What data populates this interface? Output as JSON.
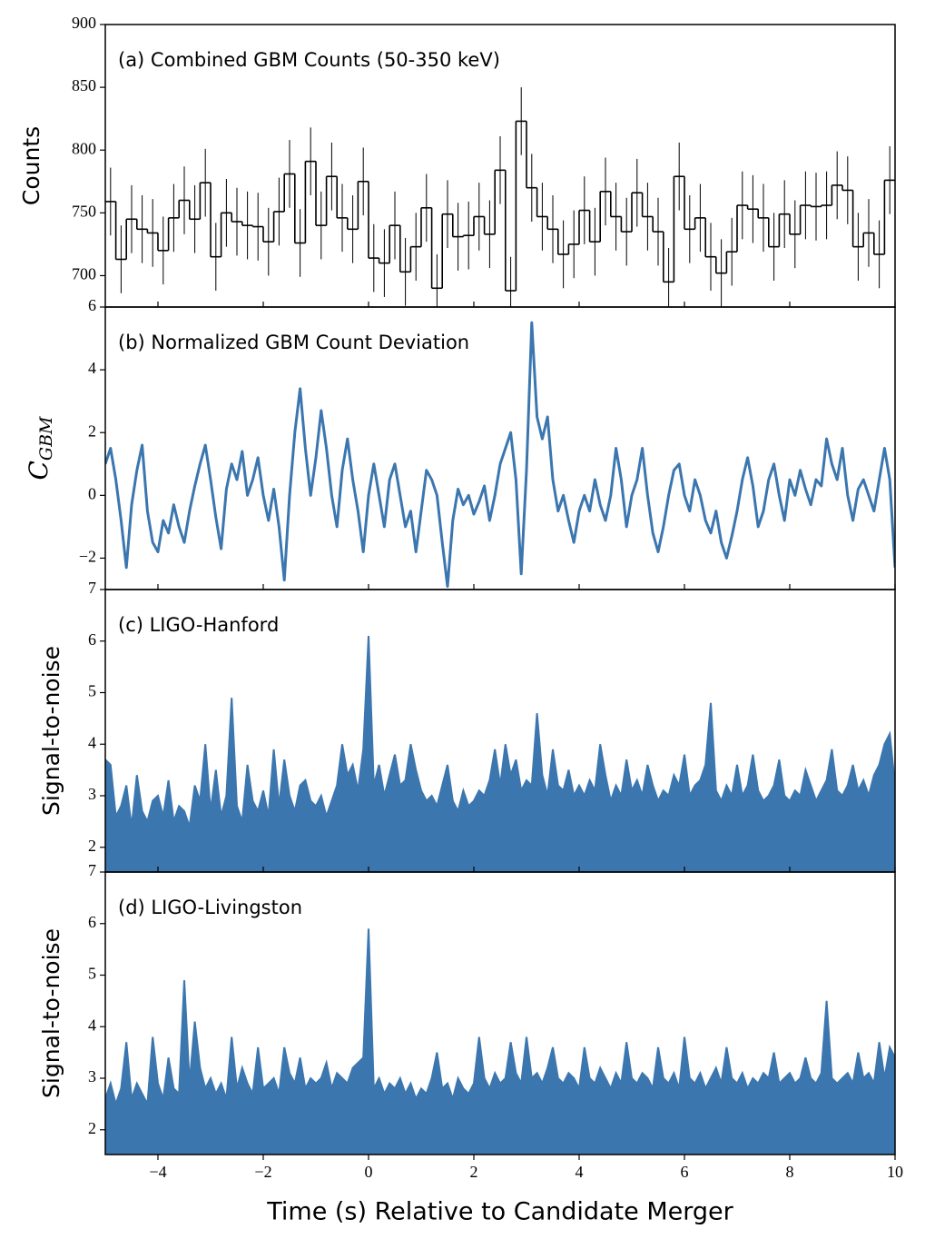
{
  "chart_data": [
    {
      "type": "histogram",
      "annotation": "(a) Combined GBM Counts (50-350 keV)",
      "ylabel": "Counts",
      "color": "#000000",
      "bins": [
        -5,
        -4.8,
        -4.6,
        -4.4,
        -4.2,
        -4,
        -3.8,
        -3.6,
        -3.4,
        -3.2,
        -3,
        -2.8,
        -2.6,
        -2.4,
        -2.2,
        -2,
        -1.8,
        -1.6,
        -1.4,
        -1.2,
        -1,
        -0.8,
        -0.6,
        -0.4,
        -0.2,
        0,
        0.2,
        0.4,
        0.6,
        0.8,
        1,
        1.2,
        1.4,
        1.6,
        1.8,
        2,
        2.2,
        2.4,
        2.6,
        2.8,
        3,
        3.2,
        3.4,
        3.6,
        3.8,
        4,
        4.2,
        4.4,
        4.6,
        4.8,
        5,
        5.2,
        5.4,
        5.6,
        5.8,
        6,
        6.2,
        6.4,
        6.6,
        6.8,
        7,
        7.2,
        7.4,
        7.6,
        7.8,
        8,
        8.2,
        8.4,
        8.6,
        8.8,
        9,
        9.2,
        9.4,
        9.6,
        9.8,
        10
      ],
      "values": [
        759,
        713,
        745,
        737,
        734,
        720,
        746,
        760,
        745,
        774,
        715,
        750,
        743,
        740,
        739,
        727,
        751,
        781,
        726,
        791,
        740,
        779,
        746,
        737,
        775,
        714,
        710,
        740,
        703,
        723,
        754,
        690,
        749,
        731,
        732,
        747,
        733,
        784,
        688,
        823,
        770,
        747,
        737,
        717,
        725,
        752,
        727,
        767,
        747,
        735,
        766,
        747,
        735,
        695,
        779,
        737,
        746,
        715,
        702,
        719,
        756,
        753,
        746,
        723,
        749,
        733,
        756,
        755,
        756,
        772,
        768,
        723,
        734,
        717,
        776
      ],
      "error": 27,
      "xlim": [
        -5,
        10
      ],
      "xticks": [
        -4,
        -2,
        0,
        2,
        4,
        6,
        8,
        10
      ],
      "ylim": [
        675,
        900
      ],
      "yticks": [
        700,
        750,
        800,
        850,
        900
      ]
    },
    {
      "type": "line",
      "annotation": "(b) Normalized GBM Count Deviation",
      "ylabel": {
        "base": "C",
        "sub": "GBM"
      },
      "color": "#3b76af",
      "x": [
        -5,
        -4.9,
        -4.8,
        -4.7,
        -4.6,
        -4.5,
        -4.4,
        -4.3,
        -4.2,
        -4.1,
        -4,
        -3.9,
        -3.8,
        -3.7,
        -3.6,
        -3.5,
        -3.4,
        -3.3,
        -3.2,
        -3.1,
        -3,
        -2.9,
        -2.8,
        -2.7,
        -2.6,
        -2.5,
        -2.4,
        -2.3,
        -2.2,
        -2.1,
        -2,
        -1.9,
        -1.8,
        -1.7,
        -1.6,
        -1.5,
        -1.4,
        -1.3,
        -1.2,
        -1.1,
        -1,
        -0.9,
        -0.8,
        -0.7,
        -0.6,
        -0.5,
        -0.4,
        -0.3,
        -0.2,
        -0.1,
        0,
        0.1,
        0.2,
        0.3,
        0.4,
        0.5,
        0.6,
        0.7,
        0.8,
        0.9,
        1,
        1.1,
        1.2,
        1.3,
        1.4,
        1.5,
        1.6,
        1.7,
        1.8,
        1.9,
        2,
        2.1,
        2.2,
        2.3,
        2.4,
        2.5,
        2.6,
        2.7,
        2.8,
        2.9,
        3,
        3.1,
        3.2,
        3.3,
        3.4,
        3.5,
        3.6,
        3.7,
        3.8,
        3.9,
        4,
        4.1,
        4.2,
        4.3,
        4.4,
        4.5,
        4.6,
        4.7,
        4.8,
        4.9,
        5,
        5.1,
        5.2,
        5.3,
        5.4,
        5.5,
        5.6,
        5.7,
        5.8,
        5.9,
        6,
        6.1,
        6.2,
        6.3,
        6.4,
        6.5,
        6.6,
        6.7,
        6.8,
        6.9,
        7,
        7.1,
        7.2,
        7.3,
        7.4,
        7.5,
        7.6,
        7.7,
        7.8,
        7.9,
        8,
        8.1,
        8.2,
        8.3,
        8.4,
        8.5,
        8.6,
        8.7,
        8.8,
        8.9,
        9,
        9.1,
        9.2,
        9.3,
        9.4,
        9.5,
        9.6,
        9.7,
        9.8,
        9.9,
        10
      ],
      "values": [
        1.0,
        1.5,
        0.5,
        -0.8,
        -2.3,
        -0.3,
        0.8,
        1.6,
        -0.5,
        -1.5,
        -1.8,
        -0.8,
        -1.2,
        -0.3,
        -1.0,
        -1.5,
        -0.5,
        0.3,
        1.0,
        1.6,
        0.5,
        -0.7,
        -1.7,
        0.2,
        1.0,
        0.5,
        1.4,
        0.0,
        0.5,
        1.2,
        0.0,
        -0.8,
        0.2,
        -1.0,
        -2.7,
        0.0,
        2.0,
        3.4,
        1.5,
        0.0,
        1.2,
        2.7,
        1.5,
        0.0,
        -1.0,
        0.8,
        1.8,
        0.5,
        -0.5,
        -1.8,
        0.0,
        1.0,
        0.0,
        -1.0,
        0.5,
        1.0,
        0.0,
        -1.0,
        -0.5,
        -1.8,
        -0.5,
        0.8,
        0.5,
        0.0,
        -1.5,
        -2.9,
        -0.8,
        0.2,
        -0.3,
        0.0,
        -0.6,
        -0.2,
        0.3,
        -0.8,
        0.0,
        1.0,
        1.5,
        2.0,
        0.5,
        -2.5,
        0.8,
        5.5,
        2.5,
        1.8,
        2.5,
        0.5,
        -0.5,
        0.0,
        -0.8,
        -1.5,
        -0.5,
        0.0,
        -0.5,
        0.5,
        -0.3,
        -0.8,
        0.0,
        1.5,
        0.5,
        -1.0,
        0.0,
        0.5,
        1.5,
        0.0,
        -1.2,
        -1.8,
        -1.0,
        0.0,
        0.8,
        1.0,
        0.0,
        -0.5,
        0.5,
        0.0,
        -0.8,
        -1.2,
        -0.5,
        -1.5,
        -2.0,
        -1.3,
        -0.5,
        0.5,
        1.2,
        0.3,
        -1.0,
        -0.5,
        0.5,
        1.0,
        0.0,
        -0.8,
        0.5,
        0.0,
        0.8,
        0.2,
        -0.3,
        0.5,
        0.3,
        1.8,
        1.0,
        0.5,
        1.5,
        0.0,
        -0.8,
        0.2,
        0.5,
        0.0,
        -0.5,
        0.5,
        1.5,
        0.5,
        -2.3
      ],
      "xlim": [
        -5,
        10
      ],
      "xticks": [
        -4,
        -2,
        0,
        2,
        4,
        6,
        8,
        10
      ],
      "ylim": [
        -3,
        6
      ],
      "yticks": [
        {
          "value": -2,
          "label": "−2"
        },
        0,
        2,
        4,
        6
      ]
    },
    {
      "type": "area",
      "annotation": "(c) LIGO-Hanford",
      "ylabel": "Signal-to-noise",
      "color": "#3b76af",
      "x": [
        -5,
        -4.9,
        -4.8,
        -4.7,
        -4.6,
        -4.5,
        -4.4,
        -4.3,
        -4.2,
        -4.1,
        -4,
        -3.9,
        -3.8,
        -3.7,
        -3.6,
        -3.5,
        -3.4,
        -3.3,
        -3.2,
        -3.1,
        -3,
        -2.9,
        -2.8,
        -2.7,
        -2.6,
        -2.5,
        -2.4,
        -2.3,
        -2.2,
        -2.1,
        -2,
        -1.9,
        -1.8,
        -1.7,
        -1.6,
        -1.5,
        -1.4,
        -1.3,
        -1.2,
        -1.1,
        -1,
        -0.9,
        -0.8,
        -0.7,
        -0.6,
        -0.5,
        -0.4,
        -0.3,
        -0.2,
        -0.1,
        0,
        0.1,
        0.2,
        0.3,
        0.4,
        0.5,
        0.6,
        0.7,
        0.8,
        0.9,
        1,
        1.1,
        1.2,
        1.3,
        1.4,
        1.5,
        1.6,
        1.7,
        1.8,
        1.9,
        2,
        2.1,
        2.2,
        2.3,
        2.4,
        2.5,
        2.6,
        2.7,
        2.8,
        2.9,
        3,
        3.1,
        3.2,
        3.3,
        3.4,
        3.5,
        3.6,
        3.7,
        3.8,
        3.9,
        4,
        4.1,
        4.2,
        4.3,
        4.4,
        4.5,
        4.6,
        4.7,
        4.8,
        4.9,
        5,
        5.1,
        5.2,
        5.3,
        5.4,
        5.5,
        5.6,
        5.7,
        5.8,
        5.9,
        6,
        6.1,
        6.2,
        6.3,
        6.4,
        6.5,
        6.6,
        6.7,
        6.8,
        6.9,
        7,
        7.1,
        7.2,
        7.3,
        7.4,
        7.5,
        7.6,
        7.7,
        7.8,
        7.9,
        8,
        8.1,
        8.2,
        8.3,
        8.4,
        8.5,
        8.6,
        8.7,
        8.8,
        8.9,
        9,
        9.1,
        9.2,
        9.3,
        9.4,
        9.5,
        9.6,
        9.7,
        9.8,
        9.9,
        10
      ],
      "values": [
        3.7,
        3.6,
        2.6,
        2.8,
        3.2,
        2.4,
        3.4,
        2.7,
        2.5,
        2.9,
        3.0,
        2.6,
        3.3,
        2.5,
        2.8,
        2.7,
        2.4,
        3.2,
        2.9,
        4.0,
        2.7,
        3.5,
        2.6,
        3.0,
        4.9,
        2.8,
        2.5,
        3.6,
        2.9,
        2.7,
        3.1,
        2.6,
        3.9,
        2.8,
        3.7,
        3.0,
        2.7,
        3.2,
        3.3,
        2.9,
        2.8,
        3.0,
        2.6,
        2.9,
        3.2,
        4.0,
        3.4,
        3.6,
        3.1,
        3.9,
        6.1,
        3.2,
        3.6,
        3.0,
        3.4,
        3.8,
        3.2,
        3.3,
        4.0,
        3.5,
        3.1,
        2.9,
        3.0,
        2.8,
        3.2,
        3.6,
        2.9,
        2.7,
        3.1,
        2.8,
        2.9,
        3.1,
        3.0,
        3.3,
        3.9,
        3.2,
        4.0,
        3.4,
        3.7,
        3.1,
        3.3,
        3.2,
        4.6,
        3.4,
        3.0,
        3.9,
        3.2,
        3.1,
        3.5,
        3.0,
        3.2,
        3.0,
        3.3,
        3.1,
        4.0,
        3.4,
        2.9,
        3.2,
        3.0,
        3.7,
        3.1,
        3.3,
        3.0,
        3.6,
        3.2,
        2.9,
        3.1,
        3.0,
        3.4,
        3.2,
        3.8,
        3.0,
        3.2,
        3.3,
        3.6,
        4.8,
        3.1,
        2.9,
        3.2,
        3.0,
        3.6,
        3.0,
        3.2,
        3.8,
        3.1,
        2.9,
        3.0,
        3.2,
        3.7,
        3.0,
        2.9,
        3.1,
        3.0,
        3.5,
        3.2,
        2.9,
        3.1,
        3.3,
        3.9,
        3.1,
        3.0,
        3.2,
        3.6,
        3.1,
        3.3,
        3.0,
        3.4,
        3.6,
        4.0,
        4.2,
        3.2
      ],
      "xlim": [
        -5,
        10
      ],
      "xticks": [
        -4,
        -2,
        0,
        2,
        4,
        6,
        8,
        10
      ],
      "ylim": [
        1.52,
        7
      ],
      "yticks": [
        2,
        3,
        4,
        5,
        6,
        7
      ]
    },
    {
      "type": "area",
      "annotation": "(d) LIGO-Livingston",
      "ylabel": "Signal-to-noise",
      "xlabel": "Time (s) Relative to Candidate Merger",
      "color": "#3b76af",
      "x": [
        -5,
        -4.9,
        -4.8,
        -4.7,
        -4.6,
        -4.5,
        -4.4,
        -4.3,
        -4.2,
        -4.1,
        -4,
        -3.9,
        -3.8,
        -3.7,
        -3.6,
        -3.5,
        -3.4,
        -3.3,
        -3.2,
        -3.1,
        -3,
        -2.9,
        -2.8,
        -2.7,
        -2.6,
        -2.5,
        -2.4,
        -2.3,
        -2.2,
        -2.1,
        -2,
        -1.9,
        -1.8,
        -1.7,
        -1.6,
        -1.5,
        -1.4,
        -1.3,
        -1.2,
        -1.1,
        -1,
        -0.9,
        -0.8,
        -0.7,
        -0.6,
        -0.5,
        -0.4,
        -0.3,
        -0.2,
        -0.1,
        0,
        0.1,
        0.2,
        0.3,
        0.4,
        0.5,
        0.6,
        0.7,
        0.8,
        0.9,
        1,
        1.1,
        1.2,
        1.3,
        1.4,
        1.5,
        1.6,
        1.7,
        1.8,
        1.9,
        2,
        2.1,
        2.2,
        2.3,
        2.4,
        2.5,
        2.6,
        2.7,
        2.8,
        2.9,
        3,
        3.1,
        3.2,
        3.3,
        3.4,
        3.5,
        3.6,
        3.7,
        3.8,
        3.9,
        4,
        4.1,
        4.2,
        4.3,
        4.4,
        4.5,
        4.6,
        4.7,
        4.8,
        4.9,
        5,
        5.1,
        5.2,
        5.3,
        5.4,
        5.5,
        5.6,
        5.7,
        5.8,
        5.9,
        6,
        6.1,
        6.2,
        6.3,
        6.4,
        6.5,
        6.6,
        6.7,
        6.8,
        6.9,
        7,
        7.1,
        7.2,
        7.3,
        7.4,
        7.5,
        7.6,
        7.7,
        7.8,
        7.9,
        8,
        8.1,
        8.2,
        8.3,
        8.4,
        8.5,
        8.6,
        8.7,
        8.8,
        8.9,
        9,
        9.1,
        9.2,
        9.3,
        9.4,
        9.5,
        9.6,
        9.7,
        9.8,
        9.9,
        10
      ],
      "values": [
        2.6,
        2.9,
        2.5,
        2.8,
        3.7,
        2.6,
        2.9,
        2.7,
        2.5,
        3.8,
        2.9,
        2.6,
        3.4,
        2.8,
        2.7,
        4.9,
        2.9,
        4.1,
        3.2,
        2.8,
        3.0,
        2.7,
        2.9,
        2.6,
        3.8,
        2.8,
        3.2,
        2.9,
        2.7,
        3.6,
        2.8,
        2.9,
        3.0,
        2.7,
        3.6,
        3.1,
        2.9,
        3.4,
        2.8,
        3.0,
        2.9,
        3.0,
        3.3,
        2.8,
        3.1,
        3.0,
        2.9,
        3.2,
        3.3,
        3.4,
        5.9,
        2.8,
        3.0,
        2.7,
        2.9,
        2.8,
        3.0,
        2.7,
        2.9,
        2.6,
        2.8,
        2.7,
        3.0,
        3.5,
        2.8,
        2.9,
        2.6,
        3.0,
        2.8,
        2.7,
        2.9,
        3.8,
        3.0,
        2.8,
        3.1,
        2.9,
        3.0,
        3.7,
        3.1,
        2.9,
        3.8,
        3.0,
        3.1,
        2.9,
        3.2,
        3.6,
        3.0,
        2.9,
        3.1,
        3.0,
        2.8,
        3.6,
        3.0,
        2.9,
        3.2,
        3.0,
        2.8,
        3.1,
        2.9,
        3.7,
        3.0,
        2.9,
        3.1,
        3.0,
        2.8,
        3.6,
        3.0,
        2.9,
        3.1,
        2.8,
        3.8,
        3.0,
        2.9,
        3.1,
        2.8,
        3.0,
        3.2,
        2.9,
        3.6,
        3.0,
        2.9,
        3.1,
        2.8,
        3.0,
        2.9,
        3.1,
        3.0,
        3.5,
        2.9,
        3.0,
        3.1,
        2.9,
        3.0,
        3.4,
        3.0,
        2.9,
        3.1,
        4.5,
        3.0,
        2.9,
        3.0,
        3.1,
        2.9,
        3.5,
        3.0,
        3.1,
        2.9,
        3.7,
        3.0,
        3.6,
        3.4
      ],
      "xlim": [
        -5,
        10
      ],
      "xticks": [
        {
          "value": -4,
          "label": "−4"
        },
        {
          "value": -2,
          "label": "−2"
        },
        0,
        2,
        4,
        6,
        8,
        10
      ],
      "ylim": [
        1.52,
        7
      ],
      "yticks": [
        2,
        3,
        4,
        5,
        6,
        7
      ]
    }
  ]
}
